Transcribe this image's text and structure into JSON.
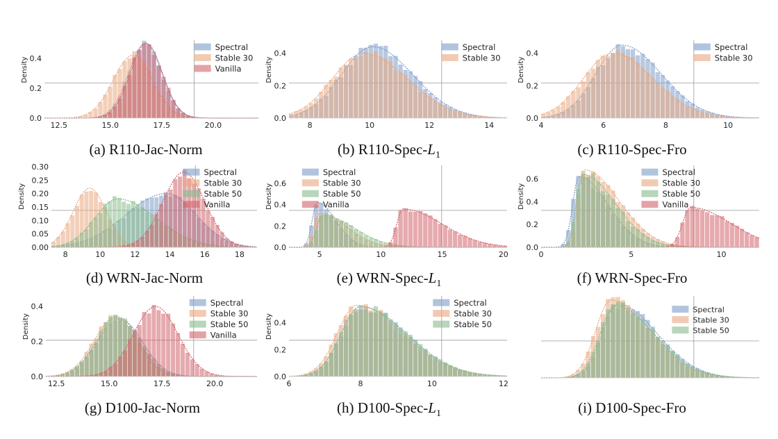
{
  "colors": {
    "Spectral": "#7d9cc8",
    "Stable 30": "#e9a77f",
    "Stable 50": "#88bb8c",
    "Vanilla": "#d1646c",
    "grid": "#9a9a9a"
  },
  "chart_data": [
    {
      "id": "a",
      "caption_label": "(a) R110-Jac-Norm",
      "caption_sub": "",
      "type": "histogram",
      "ylabel": "Density",
      "xlim": [
        11.8,
        22.2
      ],
      "ylim": [
        0,
        0.52
      ],
      "xticks": [
        12.5,
        15.0,
        17.5,
        20.0
      ],
      "xtick_labels": [
        "12.5",
        "15.0",
        "17.5",
        "20.0"
      ],
      "yticks": [
        0.0,
        0.2,
        0.4
      ],
      "ytick_labels": [
        "0.0",
        "0.2",
        "0.4"
      ],
      "grid": true,
      "legend": "top-right",
      "series": [
        {
          "name": "Spectral",
          "dist": "normal",
          "mean": 16.7,
          "sd": 0.8,
          "peak": 0.5
        },
        {
          "name": "Stable 30",
          "dist": "normal",
          "mean": 16.1,
          "sd": 0.95,
          "peak": 0.42
        },
        {
          "name": "Vanilla",
          "dist": "normal",
          "mean": 16.75,
          "sd": 0.78,
          "peak": 0.5
        }
      ]
    },
    {
      "id": "b",
      "caption_label": "(b) R110-Spec-",
      "caption_sub": "L1",
      "type": "histogram",
      "ylabel": "Density",
      "xlim": [
        7.3,
        14.6
      ],
      "ylim": [
        0,
        0.48
      ],
      "xticks": [
        8,
        10,
        12,
        14
      ],
      "xtick_labels": [
        "8",
        "10",
        "12",
        "14"
      ],
      "yticks": [
        0.0,
        0.2,
        0.4
      ],
      "ytick_labels": [
        "0.0",
        "0.2",
        "0.4"
      ],
      "grid": true,
      "legend": "top-right",
      "series": [
        {
          "name": "Spectral",
          "dist": "skew",
          "mode": 10.1,
          "sdl": 1.05,
          "sdr": 1.35,
          "peak": 0.44
        },
        {
          "name": "Stable 30",
          "dist": "skew",
          "mode": 9.8,
          "sdl": 1.05,
          "sdr": 1.45,
          "peak": 0.4
        }
      ]
    },
    {
      "id": "c",
      "caption_label": "(c) R110-Spec-Fro",
      "caption_sub": "",
      "type": "histogram",
      "ylabel": "Density",
      "xlim": [
        4.0,
        11.0
      ],
      "ylim": [
        0,
        0.48
      ],
      "xticks": [
        4,
        6,
        8,
        10
      ],
      "xtick_labels": [
        "4",
        "6",
        "8",
        "10"
      ],
      "yticks": [
        0.0,
        0.2,
        0.4
      ],
      "ytick_labels": [
        "0.0",
        "0.2",
        "0.4"
      ],
      "grid": true,
      "legend": "top-right",
      "series": [
        {
          "name": "Spectral",
          "dist": "skew",
          "mode": 6.6,
          "sdl": 0.85,
          "sdr": 1.25,
          "peak": 0.45
        },
        {
          "name": "Stable 30",
          "dist": "skew",
          "mode": 6.3,
          "sdl": 0.95,
          "sdr": 1.3,
          "peak": 0.4
        }
      ]
    },
    {
      "id": "d",
      "caption_label": "(d) WRN-Jac-Norm",
      "caption_sub": "",
      "type": "histogram",
      "ylabel": "Density",
      "xlim": [
        7.2,
        19.0
      ],
      "ylim": [
        0,
        0.305
      ],
      "xticks": [
        8,
        10,
        12,
        14,
        16,
        18
      ],
      "xtick_labels": [
        "8",
        "10",
        "12",
        "14",
        "16",
        "18"
      ],
      "yticks": [
        0.0,
        0.05,
        0.1,
        0.15,
        0.2,
        0.25,
        0.3
      ],
      "ytick_labels": [
        "0.00",
        "0.05",
        "0.10",
        "0.15",
        "0.20",
        "0.25",
        "0.30"
      ],
      "grid": true,
      "legend": "top-right",
      "series": [
        {
          "name": "Spectral",
          "dist": "skew",
          "mode": 13.8,
          "sdl": 2.3,
          "sdr": 1.7,
          "peak": 0.2
        },
        {
          "name": "Stable 30",
          "dist": "normal",
          "mean": 9.4,
          "sd": 0.95,
          "peak": 0.22
        },
        {
          "name": "Stable 50",
          "dist": "skew",
          "mode": 11.0,
          "sdl": 1.3,
          "sdr": 2.2,
          "peak": 0.18
        },
        {
          "name": "Vanilla",
          "dist": "normal",
          "mean": 14.8,
          "sd": 1.2,
          "peak": 0.28
        }
      ]
    },
    {
      "id": "e",
      "caption_label": "(e) WRN-Spec-",
      "caption_sub": "L1",
      "type": "histogram",
      "ylabel": "Density",
      "xlim": [
        2.5,
        20.3
      ],
      "ylim": [
        0,
        0.77
      ],
      "xticks": [
        5,
        10,
        15,
        20
      ],
      "xtick_labels": [
        "5",
        "10",
        "15",
        "20"
      ],
      "yticks": [
        0.0,
        0.2,
        0.4,
        0.6
      ],
      "ytick_labels": [
        "0.0",
        "0.2",
        "0.4",
        "0.6"
      ],
      "grid": true,
      "legend": "top-left",
      "series": [
        {
          "name": "Spectral",
          "dist": "skew",
          "mode": 4.8,
          "sdl": 0.4,
          "sdr": 1.5,
          "peak": 0.42
        },
        {
          "name": "Stable 30",
          "dist": "skew",
          "mode": 5.0,
          "sdl": 0.45,
          "sdr": 2.2,
          "peak": 0.32
        },
        {
          "name": "Stable 50",
          "dist": "skew",
          "mode": 5.2,
          "sdl": 0.45,
          "sdr": 2.6,
          "peak": 0.3
        },
        {
          "name": "Vanilla",
          "dist": "skew",
          "mode": 11.8,
          "sdl": 0.5,
          "sdr": 3.2,
          "peak": 0.36
        }
      ]
    },
    {
      "id": "f",
      "caption_label": "(f) WRN-Spec-Fro",
      "caption_sub": "",
      "type": "histogram",
      "ylabel": "Density",
      "xlim": [
        0,
        12.1
      ],
      "ylim": [
        0,
        0.72
      ],
      "xticks": [
        0,
        5,
        10
      ],
      "xtick_labels": [
        "0",
        "5",
        "10"
      ],
      "yticks": [
        0.0,
        0.2,
        0.4,
        0.6
      ],
      "ytick_labels": [
        "0.0",
        "0.2",
        "0.4",
        "0.6"
      ],
      "grid": true,
      "legend": "top-center",
      "series": [
        {
          "name": "Spectral",
          "dist": "skew",
          "mode": 2.1,
          "sdl": 0.35,
          "sdr": 1.6,
          "peak": 0.62
        },
        {
          "name": "Stable 30",
          "dist": "skew",
          "mode": 2.4,
          "sdl": 0.35,
          "sdr": 1.9,
          "peak": 0.68
        },
        {
          "name": "Stable 50",
          "dist": "skew",
          "mode": 2.3,
          "sdl": 0.35,
          "sdr": 1.8,
          "peak": 0.64
        },
        {
          "name": "Vanilla",
          "dist": "skew",
          "mode": 8.3,
          "sdl": 0.45,
          "sdr": 2.2,
          "peak": 0.35
        }
      ]
    },
    {
      "id": "g",
      "caption_label": "(g) D100-Jac-Norm",
      "caption_sub": "",
      "type": "histogram",
      "ylabel": "Density",
      "xlim": [
        12.0,
        22.0
      ],
      "ylim": [
        0,
        0.46
      ],
      "xticks": [
        12.5,
        15.0,
        17.5,
        20.0
      ],
      "xtick_labels": [
        "12.5",
        "15.0",
        "17.5",
        "20.0"
      ],
      "yticks": [
        0.0,
        0.2,
        0.4
      ],
      "ytick_labels": [
        "0.0",
        "0.2",
        "0.4"
      ],
      "grid": true,
      "legend": "top-right",
      "series": [
        {
          "name": "Spectral",
          "dist": "normal",
          "mean": 15.5,
          "sd": 1.05,
          "peak": 0.33
        },
        {
          "name": "Stable 30",
          "dist": "normal",
          "mean": 15.3,
          "sd": 1.0,
          "peak": 0.34
        },
        {
          "name": "Stable 50",
          "dist": "normal",
          "mean": 15.4,
          "sd": 1.0,
          "peak": 0.34
        },
        {
          "name": "Vanilla",
          "dist": "normal",
          "mean": 17.2,
          "sd": 1.05,
          "peak": 0.4
        }
      ]
    },
    {
      "id": "h",
      "caption_label": "(h) D100-Spec-",
      "caption_sub": "L1",
      "type": "histogram",
      "ylabel": "Density",
      "xlim": [
        6.0,
        12.1
      ],
      "ylim": [
        0,
        0.6
      ],
      "xticks": [
        6,
        8,
        10,
        12
      ],
      "xtick_labels": [
        "6",
        "8",
        "10",
        "12"
      ],
      "yticks": [
        0.0,
        0.2,
        0.4
      ],
      "ytick_labels": [
        "0.0",
        "0.2",
        "0.4"
      ],
      "grid": true,
      "legend": "top-right",
      "series": [
        {
          "name": "Spectral",
          "dist": "skew",
          "mode": 8.0,
          "sdl": 0.55,
          "sdr": 1.3,
          "peak": 0.52
        },
        {
          "name": "Stable 30",
          "dist": "skew",
          "mode": 7.9,
          "sdl": 0.55,
          "sdr": 1.3,
          "peak": 0.53
        },
        {
          "name": "Stable 50",
          "dist": "skew",
          "mode": 8.0,
          "sdl": 0.55,
          "sdr": 1.3,
          "peak": 0.52
        }
      ]
    },
    {
      "id": "i",
      "caption_label": "(i) D100-Spec-Fro",
      "caption_sub": "",
      "type": "histogram",
      "ylabel": "",
      "xlim": [
        0,
        10
      ],
      "ylim": [
        0,
        1.0
      ],
      "xticks": [],
      "xtick_labels": [],
      "yticks": [],
      "ytick_labels": [],
      "grid": true,
      "legend": "top-right",
      "series": [
        {
          "name": "Spectral",
          "dist": "skew",
          "mode": 3.5,
          "sdl": 0.7,
          "sdr": 1.8,
          "peak": 0.9
        },
        {
          "name": "Stable 30",
          "dist": "skew",
          "mode": 3.2,
          "sdl": 0.7,
          "sdr": 1.8,
          "peak": 0.95
        },
        {
          "name": "Stable 50",
          "dist": "skew",
          "mode": 3.4,
          "sdl": 0.7,
          "sdr": 1.8,
          "peak": 0.88
        }
      ]
    }
  ]
}
